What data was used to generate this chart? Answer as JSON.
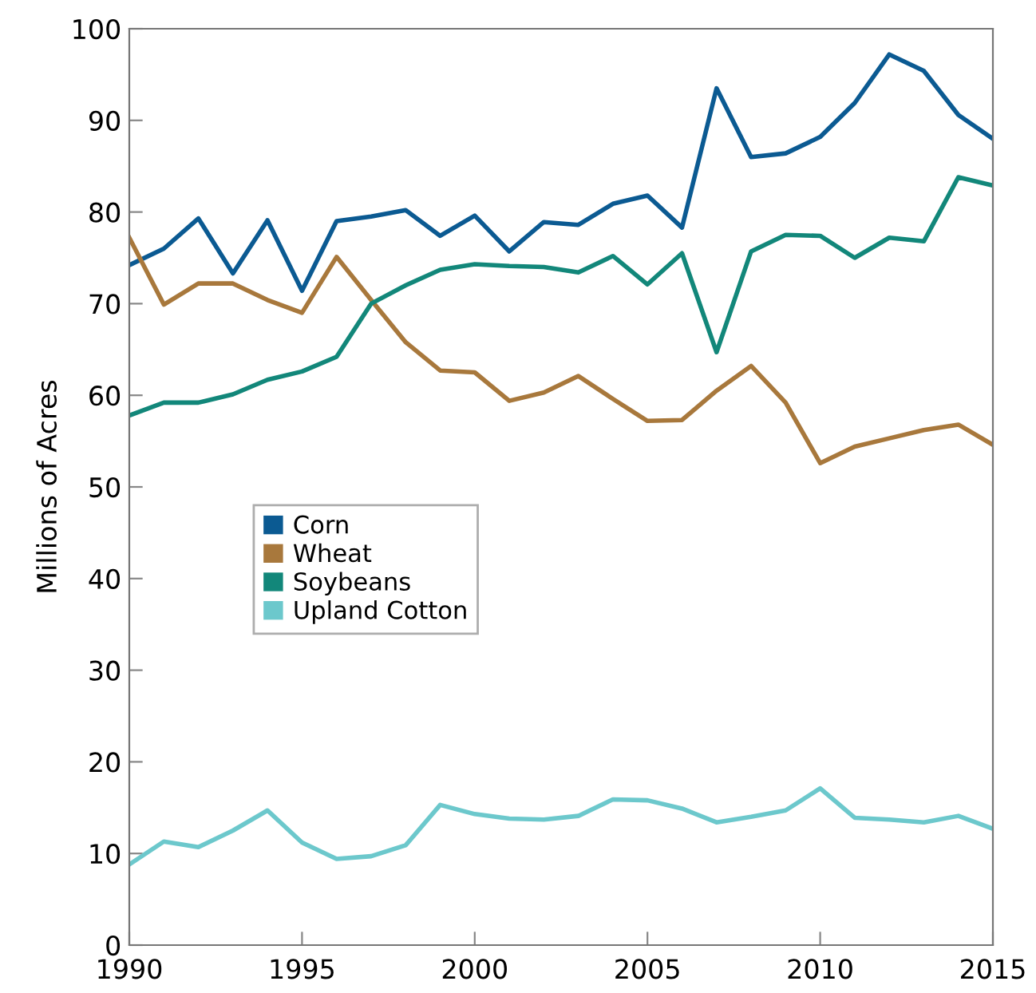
{
  "chart_data": {
    "type": "line",
    "ylabel": "Millions of Acres",
    "x": [
      1990,
      1991,
      1992,
      1993,
      1994,
      1995,
      1996,
      1997,
      1998,
      1999,
      2000,
      2001,
      2002,
      2003,
      2004,
      2005,
      2006,
      2007,
      2008,
      2009,
      2010,
      2011,
      2012,
      2013,
      2014,
      2015
    ],
    "series": [
      {
        "name": "Corn",
        "color": "#0b5a92",
        "values": [
          74.2,
          76.0,
          79.3,
          73.3,
          79.1,
          71.4,
          79.0,
          79.5,
          80.2,
          77.4,
          79.6,
          75.7,
          78.9,
          78.6,
          80.9,
          81.8,
          78.3,
          93.5,
          86.0,
          86.4,
          88.2,
          91.9,
          97.2,
          95.4,
          90.6,
          88.0
        ]
      },
      {
        "name": "Wheat",
        "color": "#a8783c",
        "values": [
          77.2,
          69.9,
          72.2,
          72.2,
          70.4,
          69.0,
          75.1,
          70.4,
          65.8,
          62.7,
          62.5,
          59.4,
          60.3,
          62.1,
          59.6,
          57.2,
          57.3,
          60.5,
          63.2,
          59.2,
          52.6,
          54.4,
          55.3,
          56.2,
          56.8,
          54.6
        ]
      },
      {
        "name": "Soybeans",
        "color": "#12877a",
        "values": [
          57.8,
          59.2,
          59.2,
          60.1,
          61.7,
          62.6,
          64.2,
          70.0,
          72.0,
          73.7,
          74.3,
          74.1,
          74.0,
          73.4,
          75.2,
          72.1,
          75.5,
          64.7,
          75.7,
          77.5,
          77.4,
          75.0,
          77.2,
          76.8,
          83.8,
          82.9
        ]
      },
      {
        "name": "Upland Cotton",
        "color": "#6cc8cc",
        "values": [
          8.8,
          11.3,
          10.7,
          12.5,
          14.7,
          11.2,
          9.4,
          9.7,
          10.9,
          15.3,
          14.3,
          13.8,
          13.7,
          14.1,
          15.9,
          15.8,
          14.9,
          13.4,
          14.0,
          14.7,
          17.1,
          13.9,
          13.7,
          13.4,
          14.1,
          12.7
        ]
      }
    ],
    "xlim": [
      1990,
      2015
    ],
    "xticks": [
      1990,
      1995,
      2000,
      2005,
      2010,
      2015
    ],
    "ylim": [
      0,
      100
    ],
    "yticks": [
      0,
      10,
      20,
      30,
      40,
      50,
      60,
      70,
      80,
      90,
      100
    ],
    "grid": false,
    "legend": "left",
    "marker": "none",
    "line_style": "solid"
  }
}
